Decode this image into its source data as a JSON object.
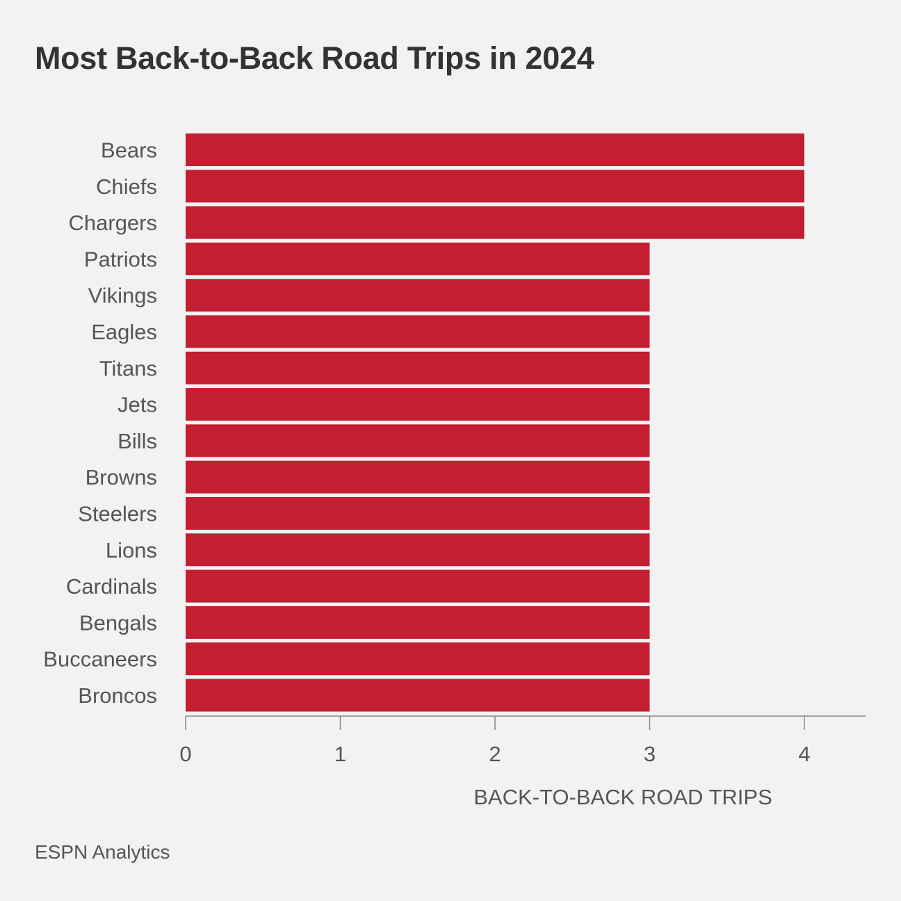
{
  "chart_data": {
    "type": "bar",
    "orientation": "horizontal",
    "title": "Most Back-to-Back Road Trips in 2024",
    "xlabel": "BACK-TO-BACK ROAD TRIPS",
    "ylabel": "",
    "categories": [
      "Bears",
      "Chiefs",
      "Chargers",
      "Patriots",
      "Vikings",
      "Eagles",
      "Titans",
      "Jets",
      "Bills",
      "Browns",
      "Steelers",
      "Lions",
      "Cardinals",
      "Bengals",
      "Buccaneers",
      "Broncos"
    ],
    "values": [
      4,
      4,
      4,
      3,
      3,
      3,
      3,
      3,
      3,
      3,
      3,
      3,
      3,
      3,
      3,
      3
    ],
    "xlim": [
      0,
      4.4
    ],
    "xticks": [
      "0",
      "1",
      "2",
      "3",
      "4"
    ],
    "grid": false,
    "legend": "none",
    "bar_color": "#c41e32"
  },
  "source": "ESPN Analytics"
}
